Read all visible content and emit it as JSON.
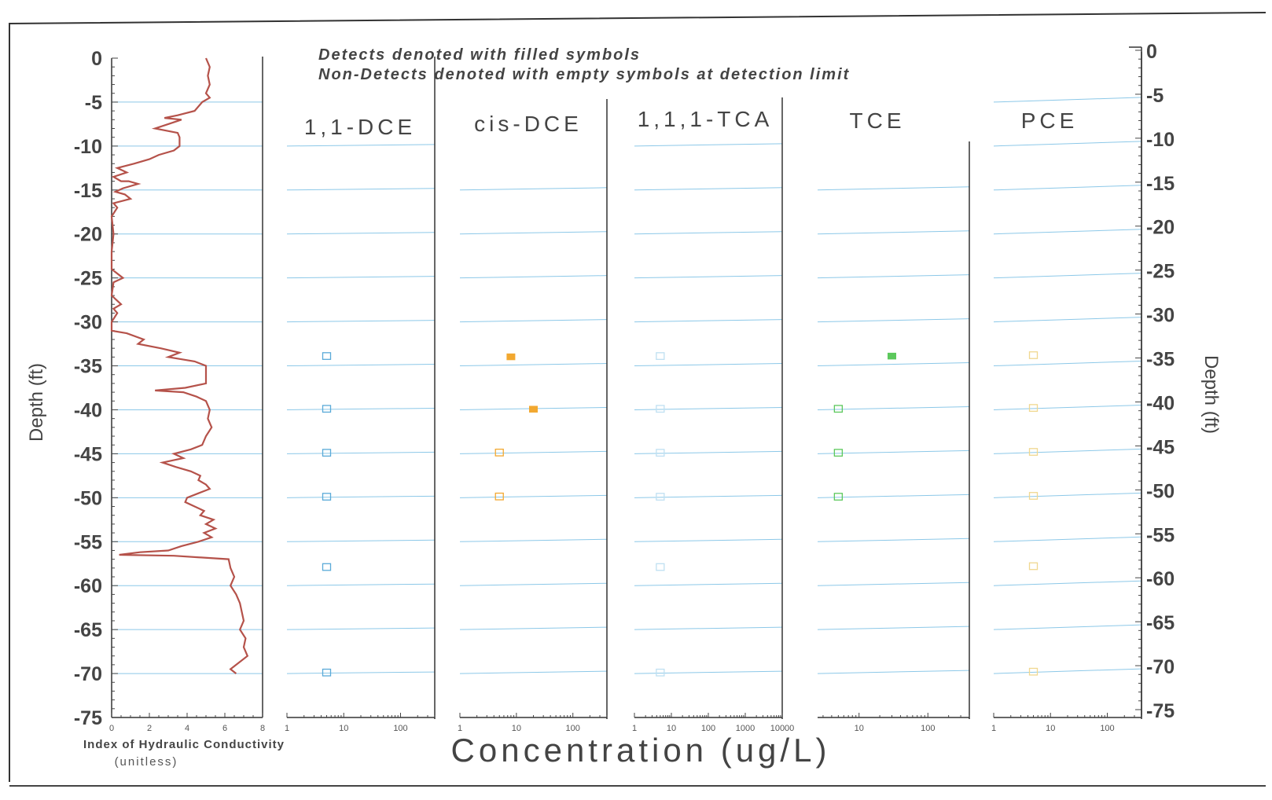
{
  "chart_data": {
    "type": "scatter",
    "notes": [
      "Detects denoted with filled symbols",
      "Non-Detects denoted with empty symbols at detection limit"
    ],
    "ylabel_left": "Depth (ft)",
    "ylabel_right": "Depth (ft)",
    "ylim": [
      -75,
      0
    ],
    "depth_ticks": [
      "0",
      "-5",
      "-10",
      "-15",
      "-20",
      "-25",
      "-30",
      "-35",
      "-40",
      "-45",
      "-50",
      "-55",
      "-60",
      "-65",
      "-70",
      "-75"
    ],
    "depth_values": [
      0,
      -5,
      -10,
      -15,
      -20,
      -25,
      -30,
      -35,
      -40,
      -45,
      -50,
      -55,
      -60,
      -65,
      -70,
      -75
    ],
    "xlabel": "Concentration (ug/L)",
    "hydraulic_conductivity": {
      "xlabel": "Index of Hydraulic Conductivity",
      "xlabel_sub": "(unitless)",
      "xlim": [
        0,
        8
      ],
      "x_ticks": [
        "0",
        "2",
        "4",
        "6",
        "8"
      ],
      "x_tick_values": [
        0,
        2,
        4,
        6,
        8
      ],
      "color": "#b5524a",
      "profile": [
        [
          5.0,
          0
        ],
        [
          5.2,
          -1
        ],
        [
          5.1,
          -2
        ],
        [
          5.2,
          -3
        ],
        [
          5.0,
          -4
        ],
        [
          5.2,
          -4.5
        ],
        [
          4.8,
          -5
        ],
        [
          4.4,
          -6
        ],
        [
          3.5,
          -6.5
        ],
        [
          2.8,
          -6.8
        ],
        [
          3.7,
          -7
        ],
        [
          3.0,
          -7.5
        ],
        [
          2.3,
          -8
        ],
        [
          3.5,
          -8.5
        ],
        [
          3.6,
          -9
        ],
        [
          3.6,
          -10
        ],
        [
          3.3,
          -10.5
        ],
        [
          2.5,
          -11
        ],
        [
          2.0,
          -11.5
        ],
        [
          1.2,
          -12
        ],
        [
          0.3,
          -12.5
        ],
        [
          0.8,
          -13
        ],
        [
          0.1,
          -13.5
        ],
        [
          0.5,
          -14
        ],
        [
          0.9,
          -14
        ],
        [
          1.4,
          -14.3
        ],
        [
          0.6,
          -14.8
        ],
        [
          0.2,
          -15.2
        ],
        [
          0.7,
          -15.5
        ],
        [
          1.0,
          -16
        ],
        [
          0.1,
          -16.5
        ],
        [
          0.3,
          -17
        ],
        [
          0.0,
          -18
        ],
        [
          0.1,
          -20
        ],
        [
          0.0,
          -22
        ],
        [
          0.0,
          -24
        ],
        [
          0.6,
          -25
        ],
        [
          0.1,
          -25.5
        ],
        [
          0.0,
          -27
        ],
        [
          0.5,
          -28
        ],
        [
          0.1,
          -28.5
        ],
        [
          0.3,
          -29
        ],
        [
          0.0,
          -30
        ],
        [
          0.0,
          -31
        ],
        [
          0.8,
          -31.3
        ],
        [
          1.7,
          -32
        ],
        [
          1.4,
          -32.5
        ],
        [
          2.6,
          -33
        ],
        [
          3.6,
          -33.5
        ],
        [
          3.0,
          -34
        ],
        [
          4.4,
          -34.5
        ],
        [
          5.0,
          -35
        ],
        [
          5.0,
          -36
        ],
        [
          5.0,
          -37
        ],
        [
          3.9,
          -37.5
        ],
        [
          2.3,
          -37.8
        ],
        [
          3.8,
          -38
        ],
        [
          4.5,
          -38.5
        ],
        [
          5.0,
          -39
        ],
        [
          5.2,
          -40
        ],
        [
          5.1,
          -41
        ],
        [
          5.3,
          -42
        ],
        [
          5.0,
          -43
        ],
        [
          4.8,
          -44
        ],
        [
          4.2,
          -44.5
        ],
        [
          3.3,
          -45
        ],
        [
          3.8,
          -45.5
        ],
        [
          2.7,
          -46
        ],
        [
          3.4,
          -46.5
        ],
        [
          4.2,
          -47
        ],
        [
          4.7,
          -47.5
        ],
        [
          4.6,
          -48
        ],
        [
          5.0,
          -48.5
        ],
        [
          5.2,
          -49
        ],
        [
          4.6,
          -49.5
        ],
        [
          4.0,
          -50
        ],
        [
          3.9,
          -50.5
        ],
        [
          4.4,
          -51
        ],
        [
          4.9,
          -51.5
        ],
        [
          4.7,
          -52
        ],
        [
          5.4,
          -52.5
        ],
        [
          5.0,
          -53
        ],
        [
          5.5,
          -53.5
        ],
        [
          4.9,
          -54
        ],
        [
          5.3,
          -54.5
        ],
        [
          4.6,
          -55
        ],
        [
          3.7,
          -55.5
        ],
        [
          3.0,
          -56
        ],
        [
          1.5,
          -56.2
        ],
        [
          0.4,
          -56.5
        ],
        [
          3.3,
          -56.6
        ],
        [
          6.2,
          -57
        ],
        [
          6.3,
          -58
        ],
        [
          6.5,
          -59
        ],
        [
          6.3,
          -60
        ],
        [
          6.6,
          -61
        ],
        [
          6.8,
          -62
        ],
        [
          6.9,
          -63
        ],
        [
          7.0,
          -64
        ],
        [
          6.8,
          -65
        ],
        [
          7.1,
          -66
        ],
        [
          7.0,
          -67
        ],
        [
          7.2,
          -68
        ],
        [
          6.6,
          -69
        ],
        [
          6.3,
          -69.5
        ],
        [
          6.6,
          -70
        ]
      ]
    },
    "panels": [
      {
        "name": "1,1-DCE",
        "x_ticks": [
          "1",
          "10",
          "100"
        ],
        "x_tick_values": [
          1,
          10,
          100
        ],
        "xlim": [
          1,
          400
        ],
        "color": "#5aaad8",
        "points": [
          [
            5,
            -34,
            false
          ],
          [
            5,
            -40,
            false
          ],
          [
            5,
            -45,
            false
          ],
          [
            5,
            -50,
            false
          ],
          [
            5,
            -58,
            false
          ],
          [
            5,
            -70,
            false
          ]
        ]
      },
      {
        "name": "cis-DCE",
        "x_ticks": [
          "1",
          "10",
          "100"
        ],
        "x_tick_values": [
          1,
          10,
          100
        ],
        "xlim": [
          1,
          400
        ],
        "color": "#f2a830",
        "points": [
          [
            8,
            -34,
            true
          ],
          [
            20,
            -40,
            true
          ],
          [
            5,
            -45,
            false
          ],
          [
            5,
            -50,
            false
          ]
        ]
      },
      {
        "name": "1,1,1-TCA",
        "x_ticks": [
          "1",
          "10",
          "100",
          "1000",
          "10000"
        ],
        "x_tick_values": [
          1,
          10,
          100,
          1000,
          10000
        ],
        "xlim": [
          1,
          10000
        ],
        "color": "#bfe0f2",
        "points": [
          [
            5,
            -34,
            false
          ],
          [
            5,
            -40,
            false
          ],
          [
            5,
            -45,
            false
          ],
          [
            5,
            -50,
            false
          ],
          [
            5,
            -58,
            false
          ],
          [
            5,
            -70,
            false
          ]
        ]
      },
      {
        "name": "TCE",
        "x_ticks": [
          "10",
          "100"
        ],
        "x_tick_values": [
          10,
          100
        ],
        "xlim": [
          2.5,
          400
        ],
        "color": "#5cc85c",
        "points": [
          [
            30,
            -34,
            true
          ],
          [
            5,
            -40,
            false
          ],
          [
            5,
            -45,
            false
          ],
          [
            5,
            -50,
            false
          ]
        ]
      },
      {
        "name": "PCE",
        "x_ticks": [
          "1",
          "10",
          "100"
        ],
        "x_tick_values": [
          1,
          10,
          100
        ],
        "xlim": [
          1,
          400
        ],
        "color": "#f0d890",
        "points": [
          [
            5,
            -34,
            false
          ],
          [
            5,
            -40,
            false
          ],
          [
            5,
            -45,
            false
          ],
          [
            5,
            -50,
            false
          ],
          [
            5,
            -58,
            false
          ],
          [
            5,
            -70,
            false
          ]
        ]
      }
    ],
    "grid": true,
    "legend": "none"
  }
}
